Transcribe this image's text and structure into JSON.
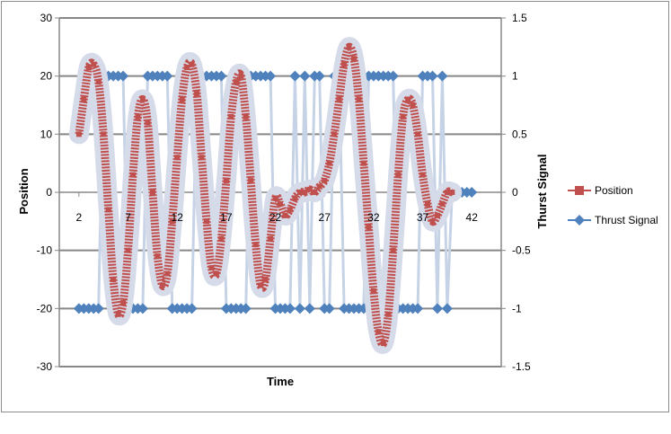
{
  "chart_data": {
    "type": "line",
    "title": "",
    "xlabel": "Time",
    "ylabel": "Position",
    "y2label": "Thurst Signal",
    "xlim": [
      0,
      45
    ],
    "ylim": [
      -30,
      30
    ],
    "y2lim": [
      -1.5,
      1.5
    ],
    "x_ticks": [
      "2",
      "7",
      "12",
      "17",
      "22",
      "27",
      "32",
      "37",
      "42"
    ],
    "y_ticks": [
      "30",
      "20",
      "10",
      "0",
      "-10",
      "-20",
      "-30"
    ],
    "y2_ticks": [
      "1.5",
      "1",
      "0.5",
      "0",
      "-0.5",
      "-1",
      "-1.5"
    ],
    "gridlines": "horizontal",
    "legend_position": "right",
    "colors": {
      "position": "#c0504d",
      "position_halo": "#d6dbea",
      "thrust": "#4f81bd",
      "grid": "#878787"
    },
    "series": [
      {
        "name": "Position",
        "axis": "left",
        "x": [
          2.0,
          2.5,
          3.0,
          3.5,
          4.0,
          4.5,
          5.0,
          5.5,
          6.0,
          6.5,
          7.0,
          7.5,
          8.0,
          8.5,
          9.0,
          9.5,
          10.0,
          10.5,
          11.0,
          11.5,
          12.0,
          12.5,
          13.0,
          13.5,
          14.0,
          14.5,
          15.0,
          15.5,
          16.0,
          16.5,
          17.0,
          17.5,
          18.0,
          18.5,
          19.0,
          19.5,
          20.0,
          20.5,
          21.0,
          21.5,
          22.0,
          22.5,
          23.0,
          23.5,
          24.0,
          24.5,
          25.0,
          25.5,
          26.0,
          26.5,
          27.0,
          27.5,
          28.0,
          28.5,
          29.0,
          29.5,
          30.0,
          30.5,
          31.0,
          31.5,
          32.0,
          32.5,
          33.0,
          33.5,
          34.0,
          34.5,
          35.0,
          35.5,
          36.0,
          36.5,
          37.0,
          37.5,
          38.0,
          38.5,
          39.0,
          39.5,
          40.0
        ],
        "values": [
          10,
          16,
          21.5,
          22,
          19,
          10,
          -3,
          -15,
          -21,
          -19,
          -10,
          3,
          13,
          16,
          12,
          0,
          -11,
          -16,
          -14,
          -5,
          6,
          16,
          21.5,
          22,
          17,
          6,
          -5,
          -13,
          -14,
          -8,
          2,
          13,
          19,
          20,
          13,
          2,
          -9,
          -16,
          -15,
          -8,
          -1,
          -2,
          -4,
          -3,
          -1,
          0,
          0,
          0.5,
          0,
          1,
          2,
          5,
          10,
          16,
          22,
          25,
          23,
          16,
          5,
          -6,
          -17,
          -24,
          -26,
          -21,
          -10,
          3,
          13,
          16,
          15,
          10,
          3,
          -2,
          -5,
          -4,
          -2,
          0,
          0
        ]
      },
      {
        "name": "Thrust Signal",
        "axis": "right",
        "x": [
          2.0,
          2.5,
          3.0,
          3.5,
          4.0,
          4.5,
          5.0,
          5.5,
          6.0,
          6.5,
          7.0,
          7.5,
          8.0,
          8.5,
          9.0,
          9.5,
          10.0,
          10.5,
          11.0,
          11.5,
          12.0,
          12.5,
          13.0,
          13.5,
          14.0,
          14.5,
          15.0,
          15.5,
          16.0,
          16.5,
          17.0,
          17.5,
          18.0,
          18.5,
          19.0,
          19.5,
          20.0,
          20.5,
          21.0,
          21.5,
          22.0,
          22.5,
          23.0,
          23.5,
          24.0,
          24.5,
          25.0,
          25.5,
          26.0,
          26.5,
          27.0,
          27.5,
          28.0,
          28.5,
          29.0,
          29.5,
          30.0,
          30.5,
          31.0,
          31.5,
          32.0,
          32.5,
          33.0,
          33.5,
          34.0,
          34.5,
          35.0,
          35.5,
          36.0,
          36.5,
          37.0,
          37.5,
          38.0,
          38.5,
          39.0,
          39.5,
          40.0,
          40.5,
          41.0,
          41.5,
          42.0
        ],
        "values": [
          -1,
          -1,
          -1,
          -1,
          -1,
          1,
          1,
          1,
          1,
          1,
          -1,
          -1,
          -1,
          -1,
          1,
          1,
          1,
          1,
          1,
          -1,
          -1,
          -1,
          -1,
          -1,
          1,
          1,
          1,
          1,
          1,
          1,
          -1,
          -1,
          -1,
          -1,
          -1,
          1,
          1,
          1,
          1,
          1,
          -1,
          -1,
          -1,
          -1,
          1,
          -1,
          1,
          -1,
          1,
          1,
          -1,
          -1,
          1,
          1,
          -1,
          -1,
          -1,
          -1,
          -1,
          1,
          1,
          1,
          1,
          1,
          1,
          -1,
          -1,
          -1,
          -1,
          -1,
          1,
          1,
          1,
          -1,
          1,
          -1,
          0,
          0,
          0,
          0,
          0
        ]
      }
    ]
  }
}
